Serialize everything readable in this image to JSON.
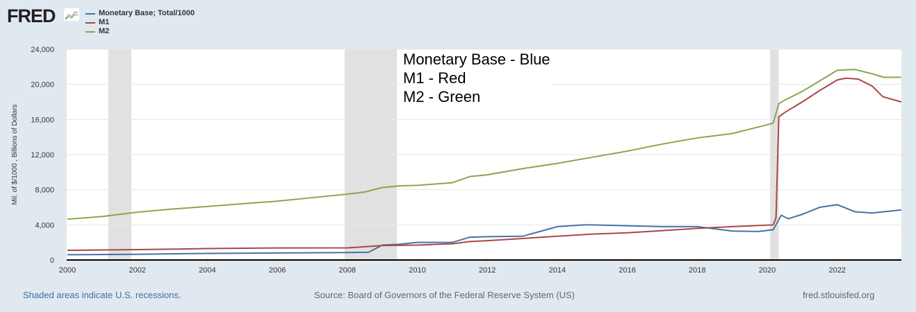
{
  "logo": "FRED",
  "chart_data": {
    "type": "line",
    "ylabel": "Mil. of $/1000 , Billions of Dollars",
    "ylim": [
      0,
      24000
    ],
    "xlim": [
      2000,
      2023.83
    ],
    "yticks": [
      "0",
      "4,000",
      "8,000",
      "12,000",
      "16,000",
      "20,000",
      "24,000"
    ],
    "xticks": [
      "2000",
      "2002",
      "2004",
      "2006",
      "2008",
      "2010",
      "2012",
      "2014",
      "2016",
      "2018",
      "2020",
      "2022"
    ],
    "grid": true,
    "legend_position": "top-left",
    "recessions": [
      [
        2001.17,
        2001.83
      ],
      [
        2007.92,
        2009.42
      ],
      [
        2020.08,
        2020.33
      ]
    ],
    "series": [
      {
        "name": "Monetary Base; Total/1000",
        "color": "#4572a7",
        "points": [
          [
            2000,
            600
          ],
          [
            2002,
            650
          ],
          [
            2004,
            750
          ],
          [
            2006,
            800
          ],
          [
            2008,
            850
          ],
          [
            2008.6,
            880
          ],
          [
            2009,
            1700
          ],
          [
            2009.5,
            1800
          ],
          [
            2010,
            2000
          ],
          [
            2011,
            2000
          ],
          [
            2011.5,
            2600
          ],
          [
            2012,
            2650
          ],
          [
            2013,
            2700
          ],
          [
            2014,
            3800
          ],
          [
            2014.75,
            4000
          ],
          [
            2015,
            4000
          ],
          [
            2016,
            3900
          ],
          [
            2017,
            3800
          ],
          [
            2018,
            3800
          ],
          [
            2019,
            3300
          ],
          [
            2019.75,
            3250
          ],
          [
            2020.17,
            3450
          ],
          [
            2020.4,
            5100
          ],
          [
            2020.6,
            4700
          ],
          [
            2021,
            5200
          ],
          [
            2021.5,
            6000
          ],
          [
            2022,
            6300
          ],
          [
            2022.5,
            5500
          ],
          [
            2023,
            5350
          ],
          [
            2023.83,
            5700
          ]
        ]
      },
      {
        "name": "M1",
        "color": "#aa4643",
        "points": [
          [
            2000,
            1100
          ],
          [
            2002,
            1180
          ],
          [
            2004,
            1300
          ],
          [
            2006,
            1370
          ],
          [
            2008,
            1380
          ],
          [
            2009,
            1650
          ],
          [
            2010,
            1700
          ],
          [
            2011,
            1850
          ],
          [
            2011.5,
            2100
          ],
          [
            2012,
            2200
          ],
          [
            2013,
            2450
          ],
          [
            2014,
            2700
          ],
          [
            2015,
            2950
          ],
          [
            2016,
            3100
          ],
          [
            2017,
            3350
          ],
          [
            2018,
            3600
          ],
          [
            2019,
            3800
          ],
          [
            2020.17,
            4000
          ],
          [
            2020.25,
            4800
          ],
          [
            2020.33,
            16300
          ],
          [
            2020.5,
            16800
          ],
          [
            2021,
            18000
          ],
          [
            2021.5,
            19300
          ],
          [
            2022,
            20500
          ],
          [
            2022.25,
            20700
          ],
          [
            2022.6,
            20600
          ],
          [
            2023,
            19800
          ],
          [
            2023.3,
            18600
          ],
          [
            2023.83,
            18000
          ]
        ]
      },
      {
        "name": "M2",
        "color": "#89a54e",
        "points": [
          [
            2000,
            4650
          ],
          [
            2001,
            4950
          ],
          [
            2002,
            5450
          ],
          [
            2003,
            5800
          ],
          [
            2004,
            6100
          ],
          [
            2005,
            6400
          ],
          [
            2006,
            6700
          ],
          [
            2007,
            7100
          ],
          [
            2008,
            7500
          ],
          [
            2008.5,
            7750
          ],
          [
            2009,
            8250
          ],
          [
            2009.5,
            8450
          ],
          [
            2010,
            8500
          ],
          [
            2011,
            8800
          ],
          [
            2011.5,
            9500
          ],
          [
            2012,
            9700
          ],
          [
            2013,
            10400
          ],
          [
            2014,
            11000
          ],
          [
            2015,
            11700
          ],
          [
            2016,
            12400
          ],
          [
            2017,
            13200
          ],
          [
            2018,
            13900
          ],
          [
            2019,
            14400
          ],
          [
            2020,
            15400
          ],
          [
            2020.17,
            15600
          ],
          [
            2020.33,
            17800
          ],
          [
            2020.5,
            18200
          ],
          [
            2021,
            19200
          ],
          [
            2021.5,
            20400
          ],
          [
            2022,
            21600
          ],
          [
            2022.5,
            21700
          ],
          [
            2023,
            21200
          ],
          [
            2023.33,
            20800
          ],
          [
            2023.83,
            20800
          ]
        ]
      }
    ],
    "annotation": [
      "Monetary Base - Blue",
      "M1 - Red",
      "M2 - Green"
    ]
  },
  "footer": {
    "left": "Shaded areas indicate U.S. recessions.",
    "center": "Source: Board of Governors of the Federal Reserve System (US)",
    "right": "fred.stlouisfed.org"
  }
}
